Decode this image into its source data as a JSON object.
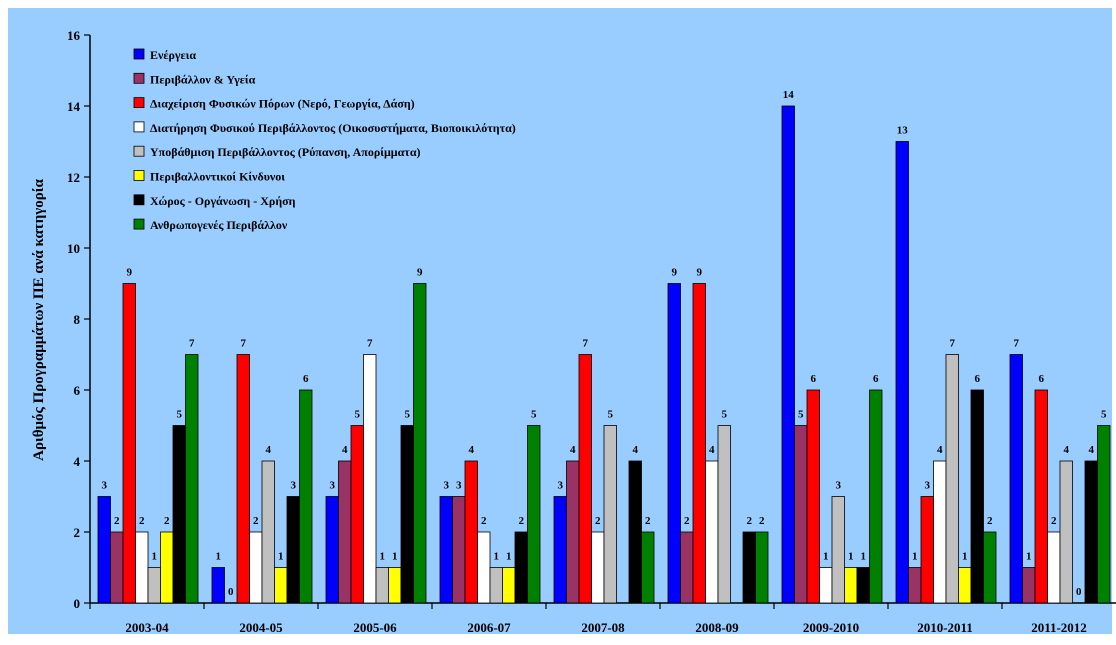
{
  "chart_data": {
    "type": "bar",
    "title": "",
    "xlabel": "",
    "ylabel": "Αριθμός Προγραμμάτων ΠΕ ανά κατηγορία",
    "ylim": [
      0,
      16
    ],
    "yticks": [
      0,
      2,
      4,
      6,
      8,
      10,
      12,
      14,
      16
    ],
    "grid": false,
    "legend_position": "top-left",
    "background_color": "#99ccff",
    "categories": [
      "2003-04",
      "2004-05",
      "2005-06",
      "2006-07",
      "2007-08",
      "2008-09",
      "2009-2010",
      "2010-2011",
      "2011-2012"
    ],
    "series": [
      {
        "name": "Ενέργεια",
        "color": "#0000ff",
        "values": [
          3,
          1,
          3,
          3,
          3,
          9,
          14,
          13,
          7
        ]
      },
      {
        "name": "Περιβάλλον & Υγεία",
        "color": "#993366",
        "values": [
          2,
          0,
          4,
          3,
          4,
          2,
          5,
          1,
          1
        ]
      },
      {
        "name": "Διαχείριση Φυσικών Πόρων (Νερό, Γεωργία, Δάση)",
        "color": "#ff0000",
        "values": [
          9,
          7,
          5,
          4,
          7,
          9,
          6,
          3,
          6
        ]
      },
      {
        "name": "Διατήρηση Φυσικού Περιβάλλοντος (Οικοσυστήματα, Βιοποικιλότητα)",
        "color": "#ffffff",
        "values": [
          2,
          2,
          7,
          2,
          2,
          4,
          1,
          4,
          2
        ]
      },
      {
        "name": "Υποβάθμιση Περιβάλλοντος (Ρύπανση, Απορίμματα)",
        "color": "#c0c0c0",
        "values": [
          1,
          4,
          1,
          1,
          5,
          5,
          3,
          7,
          4
        ]
      },
      {
        "name": "Περιβαλλοντικοί Κίνδυνοι",
        "color": "#ffff00",
        "values": [
          2,
          1,
          1,
          1,
          null,
          null,
          1,
          1,
          0
        ]
      },
      {
        "name": "Χώρος - Οργάνωση - Χρήση",
        "color": "#000000",
        "values": [
          5,
          3,
          5,
          2,
          4,
          2,
          1,
          6,
          4
        ]
      },
      {
        "name": "Ανθρωπογενές Περιβάλλον",
        "color": "#008000",
        "values": [
          7,
          6,
          9,
          5,
          2,
          2,
          6,
          2,
          5
        ]
      }
    ]
  }
}
